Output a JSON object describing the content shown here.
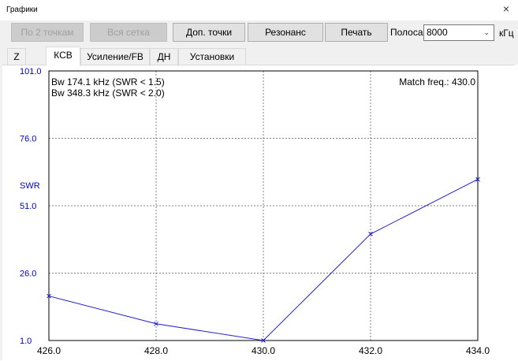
{
  "window": {
    "title": "Графики",
    "close_symbol": "×"
  },
  "toolbar": {
    "by_two_points": "По 2 точкам",
    "whole_grid": "Вся сетка",
    "extra_points": "Доп. точки",
    "resonance": "Резонанс",
    "print": "Печать",
    "band_label": "Полоса",
    "band_value": "8000",
    "unit": "кГц"
  },
  "tabs": [
    {
      "label": "Z"
    },
    {
      "label": "КСВ"
    },
    {
      "label": "Усиление/FB"
    },
    {
      "label": "ДН"
    },
    {
      "label": "Установки"
    }
  ],
  "active_tab": "КСВ",
  "colors": {
    "series": "#1f1fcc",
    "axis_labels": "#0000cc",
    "grid": "#808080"
  },
  "chart_data": {
    "type": "line",
    "title": "",
    "ylabel": "SWR",
    "xlabel": "",
    "annotations": [
      "Bw 174.1 kHz (SWR < 1.5)",
      "Bw 348.3 kHz (SWR < 2.0)",
      "Match freq.: 430.0"
    ],
    "xlim": [
      426.0,
      434.0
    ],
    "ylim": [
      1.0,
      101.0
    ],
    "x_ticks": [
      "426.0",
      "428.0",
      "430.0",
      "432.0",
      "434.0"
    ],
    "y_ticks": [
      "1.0",
      "26.0",
      "51.0",
      "76.0",
      "101.0"
    ],
    "grid": true,
    "series": [
      {
        "x": [
          426.0,
          428.0,
          430.0,
          432.0,
          434.0
        ],
        "values": [
          17.5,
          7.2,
          1.0,
          40.5,
          60.8
        ]
      }
    ]
  }
}
